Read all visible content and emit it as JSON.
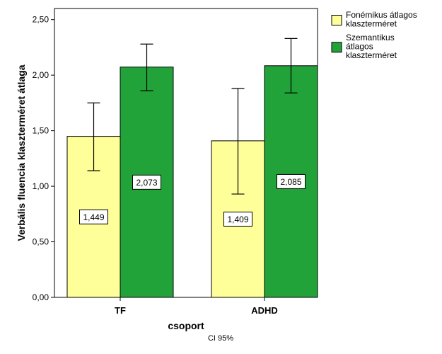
{
  "chart_data": {
    "type": "bar",
    "title": "",
    "xlabel": "csoport",
    "ylabel": "Verbális fluencia klaszterméret átlaga",
    "note": "CI 95%",
    "categories": [
      "TF",
      "ADHD"
    ],
    "ylim": [
      0,
      2.6
    ],
    "yticks": [
      0,
      0.5,
      1.0,
      1.5,
      2.0,
      2.5
    ],
    "ytick_labels": [
      "0,00",
      "0,50",
      "1,00",
      "1,50",
      "2,00",
      "2,50"
    ],
    "grid": false,
    "legend_position": "top-right",
    "series": [
      {
        "name": "Fonémikus átlagos klaszterméret",
        "color": "#ffff99",
        "values": [
          1.449,
          1.409
        ],
        "value_labels": [
          "1,449",
          "1,409"
        ],
        "ci_lower": [
          1.14,
          0.93
        ],
        "ci_upper": [
          1.75,
          1.88
        ]
      },
      {
        "name": "Szemantikus átlagos klaszterméret",
        "color": "#22a33a",
        "values": [
          2.073,
          2.085
        ],
        "value_labels": [
          "2,073",
          "2,085"
        ],
        "ci_lower": [
          1.86,
          1.84
        ],
        "ci_upper": [
          2.28,
          2.33
        ]
      }
    ]
  }
}
